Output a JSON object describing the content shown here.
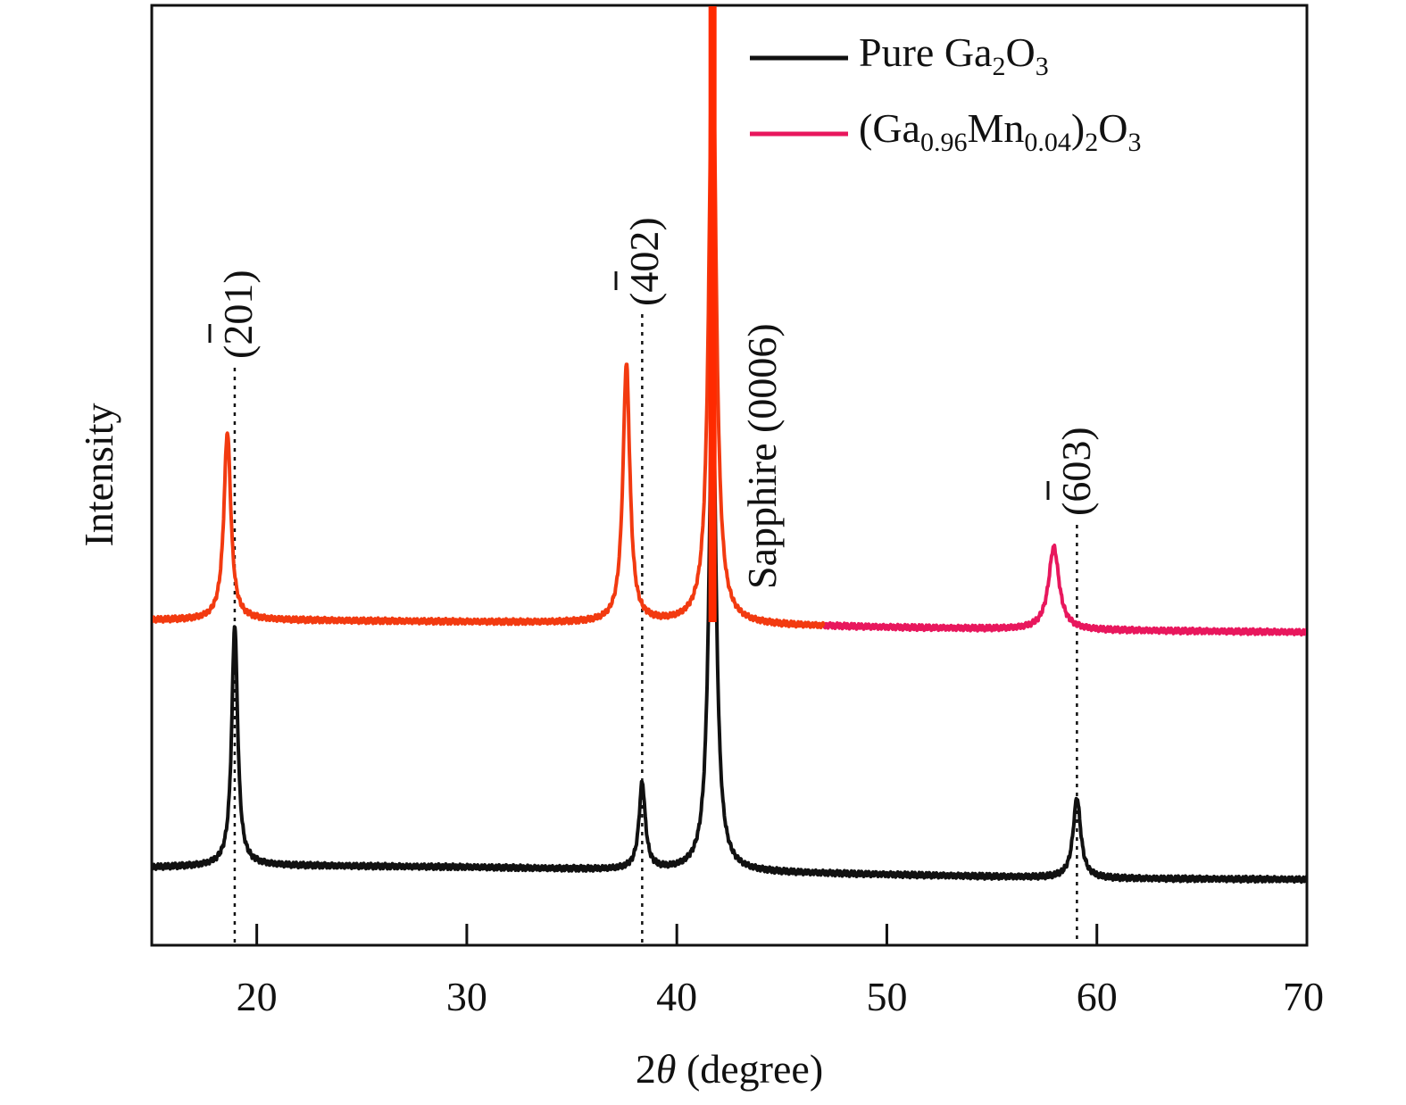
{
  "chart_data": {
    "type": "line",
    "xlabel_prefix": "2",
    "xlabel_theta": "θ",
    "xlabel_suffix": " (degree)",
    "ylabel": "Intensity",
    "xlim": [
      15,
      70
    ],
    "ylim": [
      0,
      100
    ],
    "x_ticks": [
      20,
      30,
      40,
      50,
      60,
      70
    ],
    "x_tick_labels": [
      "20",
      "30",
      "40",
      "50",
      "60",
      "70"
    ],
    "grid": false,
    "legend_position": "top-right",
    "colors": {
      "pure": "#111111",
      "mn": "#e8175d",
      "mn_low": "#f23a10",
      "spike": "#ff2a00"
    },
    "series": [
      {
        "key": "pure",
        "name_main": "Pure Ga",
        "name_sub1": "2",
        "name_mid": "O",
        "name_sub2": "3",
        "baseline": {
          "x": [
            15,
            20,
            30,
            40,
            50,
            60,
            70
          ],
          "y": [
            8.3,
            8.5,
            8.3,
            7.9,
            7.5,
            7.1,
            7.0
          ]
        },
        "peaks": [
          {
            "x": 18.95,
            "h": 25.6,
            "w": 0.17
          },
          {
            "x": 38.35,
            "h": 9.2,
            "w": 0.18
          },
          {
            "x": 41.7,
            "h": 54.0,
            "w": 0.2
          },
          {
            "x": 59.05,
            "h": 8.5,
            "w": 0.22
          }
        ]
      },
      {
        "key": "mn",
        "name_main": "(Ga",
        "name_sub1": "0.96",
        "name_mid": "Mn",
        "name_sub2": "0.04",
        "name_tail": ")",
        "name_sub3": "2",
        "name_end": "O",
        "name_sub4": "3",
        "baseline": {
          "x": [
            15,
            20,
            30,
            40,
            50,
            60,
            70
          ],
          "y": [
            34.6,
            34.6,
            34.4,
            34.2,
            33.8,
            33.5,
            33.3
          ]
        },
        "peaks": [
          {
            "x": 18.6,
            "h": 20.0,
            "w": 0.2
          },
          {
            "x": 37.6,
            "h": 27.5,
            "w": 0.2
          },
          {
            "x": 41.7,
            "h": 66.0,
            "w": 0.2
          },
          {
            "x": 57.95,
            "h": 8.8,
            "w": 0.3
          }
        ]
      }
    ],
    "annotations": [
      {
        "key": "p201",
        "label_open": "(",
        "label_bar": "2",
        "label_rest": "01)",
        "x": 18.95
      },
      {
        "key": "p402",
        "label_open": "(",
        "label_bar": "4",
        "label_rest": "02)",
        "x": 38.35
      },
      {
        "key": "p603",
        "label_open": "(",
        "label_bar": "6",
        "label_rest": "03)",
        "x": 59.05
      },
      {
        "key": "sapphire",
        "label": "Sapphire (0006)",
        "x": 43.5
      }
    ]
  }
}
